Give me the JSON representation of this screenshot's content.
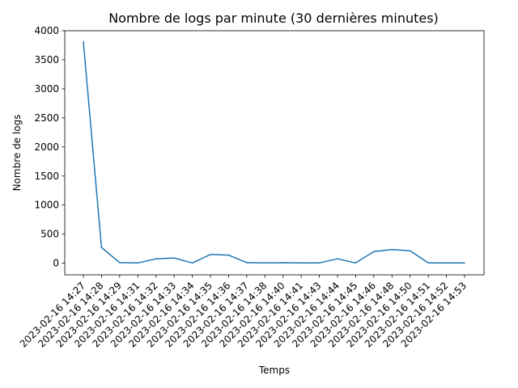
{
  "chart_data": {
    "type": "line",
    "title": "Nombre de logs par minute (30 dernières minutes)",
    "xlabel": "Temps",
    "ylabel": "Nombre de logs",
    "ylim": [
      -200,
      4000
    ],
    "yticks": [
      0,
      500,
      1000,
      1500,
      2000,
      2500,
      3000,
      3500,
      4000
    ],
    "grid": false,
    "categories": [
      "2023-02-16 14:27",
      "2023-02-16 14:28",
      "2023-02-16 14:29",
      "2023-02-16 14:31",
      "2023-02-16 14:32",
      "2023-02-16 14:33",
      "2023-02-16 14:34",
      "2023-02-16 14:35",
      "2023-02-16 14:36",
      "2023-02-16 14:37",
      "2023-02-16 14:38",
      "2023-02-16 14:40",
      "2023-02-16 14:41",
      "2023-02-16 14:43",
      "2023-02-16 14:44",
      "2023-02-16 14:45",
      "2023-02-16 14:46",
      "2023-02-16 14:48",
      "2023-02-16 14:50",
      "2023-02-16 14:51",
      "2023-02-16 14:52",
      "2023-02-16 14:53"
    ],
    "series": [
      {
        "values": [
          3810,
          270,
          10,
          5,
          75,
          90,
          5,
          150,
          140,
          10,
          5,
          8,
          5,
          5,
          75,
          5,
          200,
          235,
          215,
          5,
          5,
          5
        ],
        "color": "#1f77b4"
      }
    ]
  }
}
